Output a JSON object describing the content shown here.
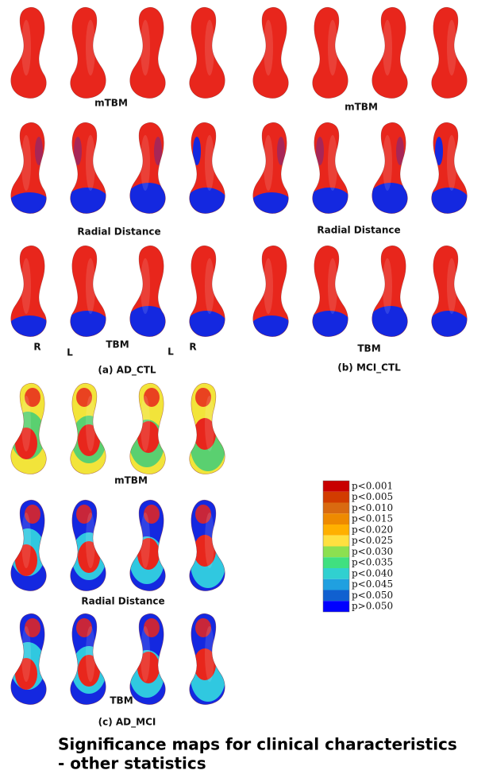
{
  "panels": [
    {
      "rows": [
        "mTBM",
        "Radial Distance",
        "TBM"
      ],
      "side_labels": [
        "R",
        "L",
        "L",
        "R"
      ],
      "caption": "(a) AD_CTL"
    },
    {
      "rows": [
        "mTBM",
        "Radial Distance",
        "TBM"
      ],
      "caption": "(b) MCI_CTL"
    },
    {
      "rows": [
        "mTBM",
        "Radial Distance",
        "TBM"
      ],
      "caption": "(c) AD_MCI"
    }
  ],
  "legend": {
    "items": [
      {
        "label": "p<0.001",
        "color": "#c80000"
      },
      {
        "label": "p<0.005",
        "color": "#d23c00"
      },
      {
        "label": "p<0.010",
        "color": "#d96a10"
      },
      {
        "label": "p<0.015",
        "color": "#ee8a00"
      },
      {
        "label": "p<0.020",
        "color": "#ffb000"
      },
      {
        "label": "p<0.025",
        "color": "#ffe040"
      },
      {
        "label": "p<0.030",
        "color": "#8ce050"
      },
      {
        "label": "p<0.035",
        "color": "#40e080"
      },
      {
        "label": "p<0.040",
        "color": "#30d0d0"
      },
      {
        "label": "p<0.045",
        "color": "#20a0e0"
      },
      {
        "label": "p<0.050",
        "color": "#1060d0"
      },
      {
        "label": "p>0.050",
        "color": "#0000ff"
      }
    ]
  },
  "footer": {
    "title_lines": [
      "Significance maps for clinical characteristics",
      "- other statistics"
    ]
  }
}
